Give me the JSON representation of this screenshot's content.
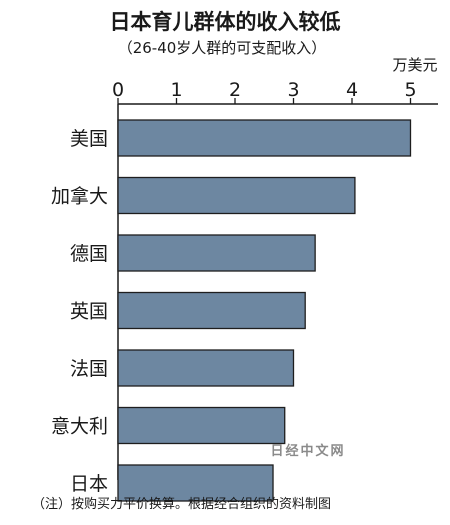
{
  "chart_data": {
    "type": "bar",
    "orientation": "horizontal",
    "title": "日本育儿群体的收入较低",
    "subtitle": "（26-40岁人群的可支配收入）",
    "unit_label": "万美元",
    "categories": [
      "美国",
      "加拿大",
      "德国",
      "英国",
      "法国",
      "意大利",
      "日本"
    ],
    "values": [
      5.0,
      4.05,
      3.37,
      3.2,
      3.0,
      2.85,
      2.65
    ],
    "xlim": [
      0,
      5.5
    ],
    "x_ticks": [
      "0",
      "1",
      "2",
      "3",
      "4",
      "5"
    ],
    "grid": false,
    "legend": "none",
    "bar_color": "#6d87a1",
    "note": "（注）按购买力平价换算。根据经合组织的资料制图"
  },
  "watermark": "日经中文网"
}
